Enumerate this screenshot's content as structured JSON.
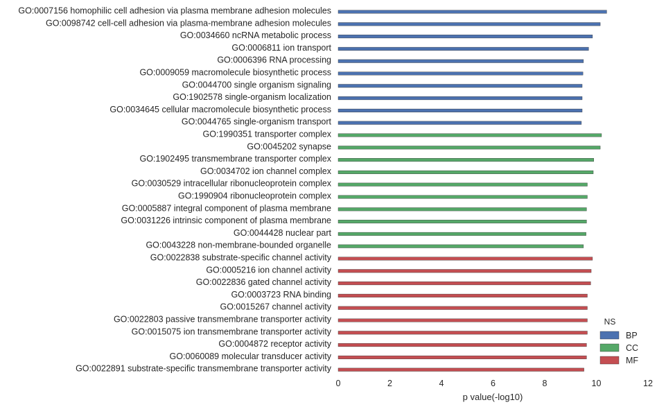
{
  "chart_data": {
    "type": "bar",
    "orientation": "horizontal",
    "xlabel": "p value(-log10)",
    "xlim": [
      0,
      12
    ],
    "xticks": [
      "0",
      "2",
      "4",
      "6",
      "8",
      "10",
      "12"
    ],
    "grid": false,
    "legend": {
      "title": "NS",
      "placement": "bottom-right",
      "entries": [
        {
          "name": "BP",
          "color": "#4c72b0"
        },
        {
          "name": "CC",
          "color": "#55a868"
        },
        {
          "name": "MF",
          "color": "#c44e52"
        }
      ]
    },
    "categories": [
      "GO:0007156 homophilic cell adhesion via plasma membrane adhesion molecules",
      "GO:0098742 cell-cell adhesion via plasma-membrane adhesion molecules",
      "GO:0034660 ncRNA metabolic process",
      "GO:0006811 ion transport",
      "GO:0006396 RNA processing",
      "GO:0009059 macromolecule biosynthetic process",
      "GO:0044700 single organism signaling",
      "GO:1902578 single-organism localization",
      "GO:0034645 cellular macromolecule biosynthetic process",
      "GO:0044765 single-organism transport",
      "GO:1990351 transporter complex",
      "GO:0045202 synapse",
      "GO:1902495 transmembrane transporter complex",
      "GO:0034702 ion channel complex",
      "GO:0030529 intracellular ribonucleoprotein complex",
      "GO:1990904 ribonucleoprotein complex",
      "GO:0005887 integral component of plasma membrane",
      "GO:0031226 intrinsic component of plasma membrane",
      "GO:0044428 nuclear part",
      "GO:0043228 non-membrane-bounded organelle",
      "GO:0022838 substrate-specific channel activity",
      "GO:0005216 ion channel activity",
      "GO:0022836 gated channel activity",
      "GO:0003723 RNA binding",
      "GO:0015267 channel activity",
      "GO:0022803 passive transmembrane transporter activity",
      "GO:0015075 ion transmembrane transporter activity",
      "GO:0004872 receptor activity",
      "GO:0060089 molecular transducer activity",
      "GO:0022891 substrate-specific transmembrane transporter activity"
    ],
    "series": [
      {
        "name": "BP",
        "values": [
          10.4,
          10.15,
          9.85,
          9.7,
          9.5,
          9.48,
          9.45,
          9.45,
          9.45,
          9.42,
          null,
          null,
          null,
          null,
          null,
          null,
          null,
          null,
          null,
          null,
          null,
          null,
          null,
          null,
          null,
          null,
          null,
          null,
          null,
          null
        ]
      },
      {
        "name": "CC",
        "values": [
          null,
          null,
          null,
          null,
          null,
          null,
          null,
          null,
          null,
          null,
          10.2,
          10.15,
          9.9,
          9.88,
          9.65,
          9.65,
          9.62,
          9.62,
          9.6,
          9.5,
          null,
          null,
          null,
          null,
          null,
          null,
          null,
          null,
          null,
          null
        ]
      },
      {
        "name": "MF",
        "values": [
          null,
          null,
          null,
          null,
          null,
          null,
          null,
          null,
          null,
          null,
          null,
          null,
          null,
          null,
          null,
          null,
          null,
          null,
          null,
          null,
          9.85,
          9.8,
          9.78,
          9.65,
          9.65,
          9.65,
          9.65,
          9.62,
          9.62,
          9.52
        ]
      }
    ]
  }
}
